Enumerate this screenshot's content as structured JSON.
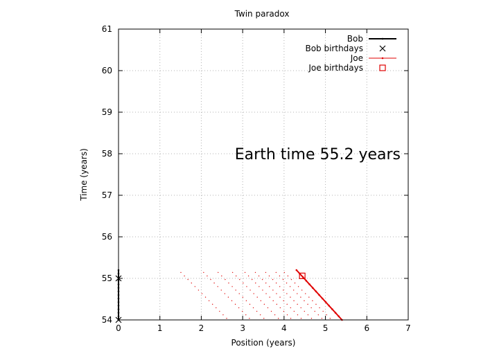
{
  "chart_data": {
    "type": "line",
    "title": "Twin paradox",
    "xlabel": "Position (years)",
    "ylabel": "Time (years)",
    "xlim": [
      0,
      7
    ],
    "ylim": [
      54,
      61
    ],
    "xticks": [
      0,
      1,
      2,
      3,
      4,
      5,
      6,
      7
    ],
    "yticks": [
      54,
      55,
      56,
      57,
      58,
      59,
      60,
      61
    ],
    "grid": true,
    "legend_position": "top-right",
    "annotation": "Earth time 55.2 years",
    "series": [
      {
        "name": "Bob",
        "style": "line",
        "color": "#000000",
        "x": [
          0,
          0
        ],
        "y": [
          54,
          55.2
        ]
      },
      {
        "name": "Bob birthdays",
        "style": "cross",
        "color": "#000000",
        "x": [
          0,
          0
        ],
        "y": [
          54,
          55
        ]
      },
      {
        "name": "Joe",
        "style": "line",
        "color": "#e00000",
        "x": [
          4.3,
          5.4
        ],
        "y": [
          55.2,
          54
        ]
      },
      {
        "name": "Joe birthdays",
        "style": "square",
        "color": "#e00000",
        "x": [
          4.44
        ],
        "y": [
          55.06
        ]
      }
    ],
    "light_lines": {
      "color": "#e00000",
      "description_free": true,
      "top_starts_x": [
        1.5,
        2.05,
        2.4,
        2.75,
        3.05,
        3.3,
        3.55,
        3.8,
        4.0
      ],
      "top_y": 55.15
    }
  }
}
